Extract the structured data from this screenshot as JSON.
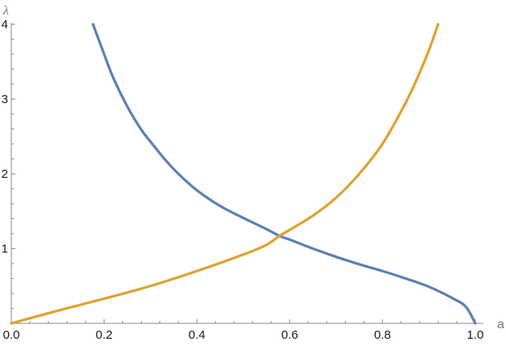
{
  "chart_data": {
    "type": "line",
    "xlabel": "a",
    "ylabel": "λ",
    "xlim": [
      0,
      1
    ],
    "ylim": [
      0,
      4
    ],
    "x_ticks": [
      "0.0",
      "0.2",
      "0.4",
      "0.6",
      "0.8",
      "1.0"
    ],
    "y_ticks": [
      "1",
      "2",
      "3",
      "4"
    ],
    "grid": false,
    "legend": "none",
    "series": [
      {
        "color": "#5b7fb5",
        "x": [
          0.176,
          0.2,
          0.22,
          0.25,
          0.28,
          0.3,
          0.33,
          0.36,
          0.4,
          0.45,
          0.5,
          0.55,
          0.578,
          0.6,
          0.65,
          0.7,
          0.75,
          0.8,
          0.85,
          0.9,
          0.95,
          0.98,
          1.0
        ],
        "y": [
          4.0,
          3.6,
          3.28,
          2.9,
          2.59,
          2.43,
          2.2,
          2.0,
          1.78,
          1.57,
          1.41,
          1.26,
          1.17,
          1.12,
          1.0,
          0.89,
          0.79,
          0.7,
          0.6,
          0.49,
          0.34,
          0.22,
          0.0
        ]
      },
      {
        "color": "#e0a030",
        "x": [
          0.0,
          0.1,
          0.2,
          0.3,
          0.4,
          0.5,
          0.55,
          0.578,
          0.6,
          0.65,
          0.7,
          0.75,
          0.8,
          0.85,
          0.88,
          0.9,
          0.92
        ],
        "y": [
          0.0,
          0.17,
          0.33,
          0.5,
          0.7,
          0.92,
          1.05,
          1.17,
          1.25,
          1.44,
          1.68,
          2.0,
          2.4,
          2.95,
          3.35,
          3.65,
          4.0
        ]
      }
    ]
  }
}
